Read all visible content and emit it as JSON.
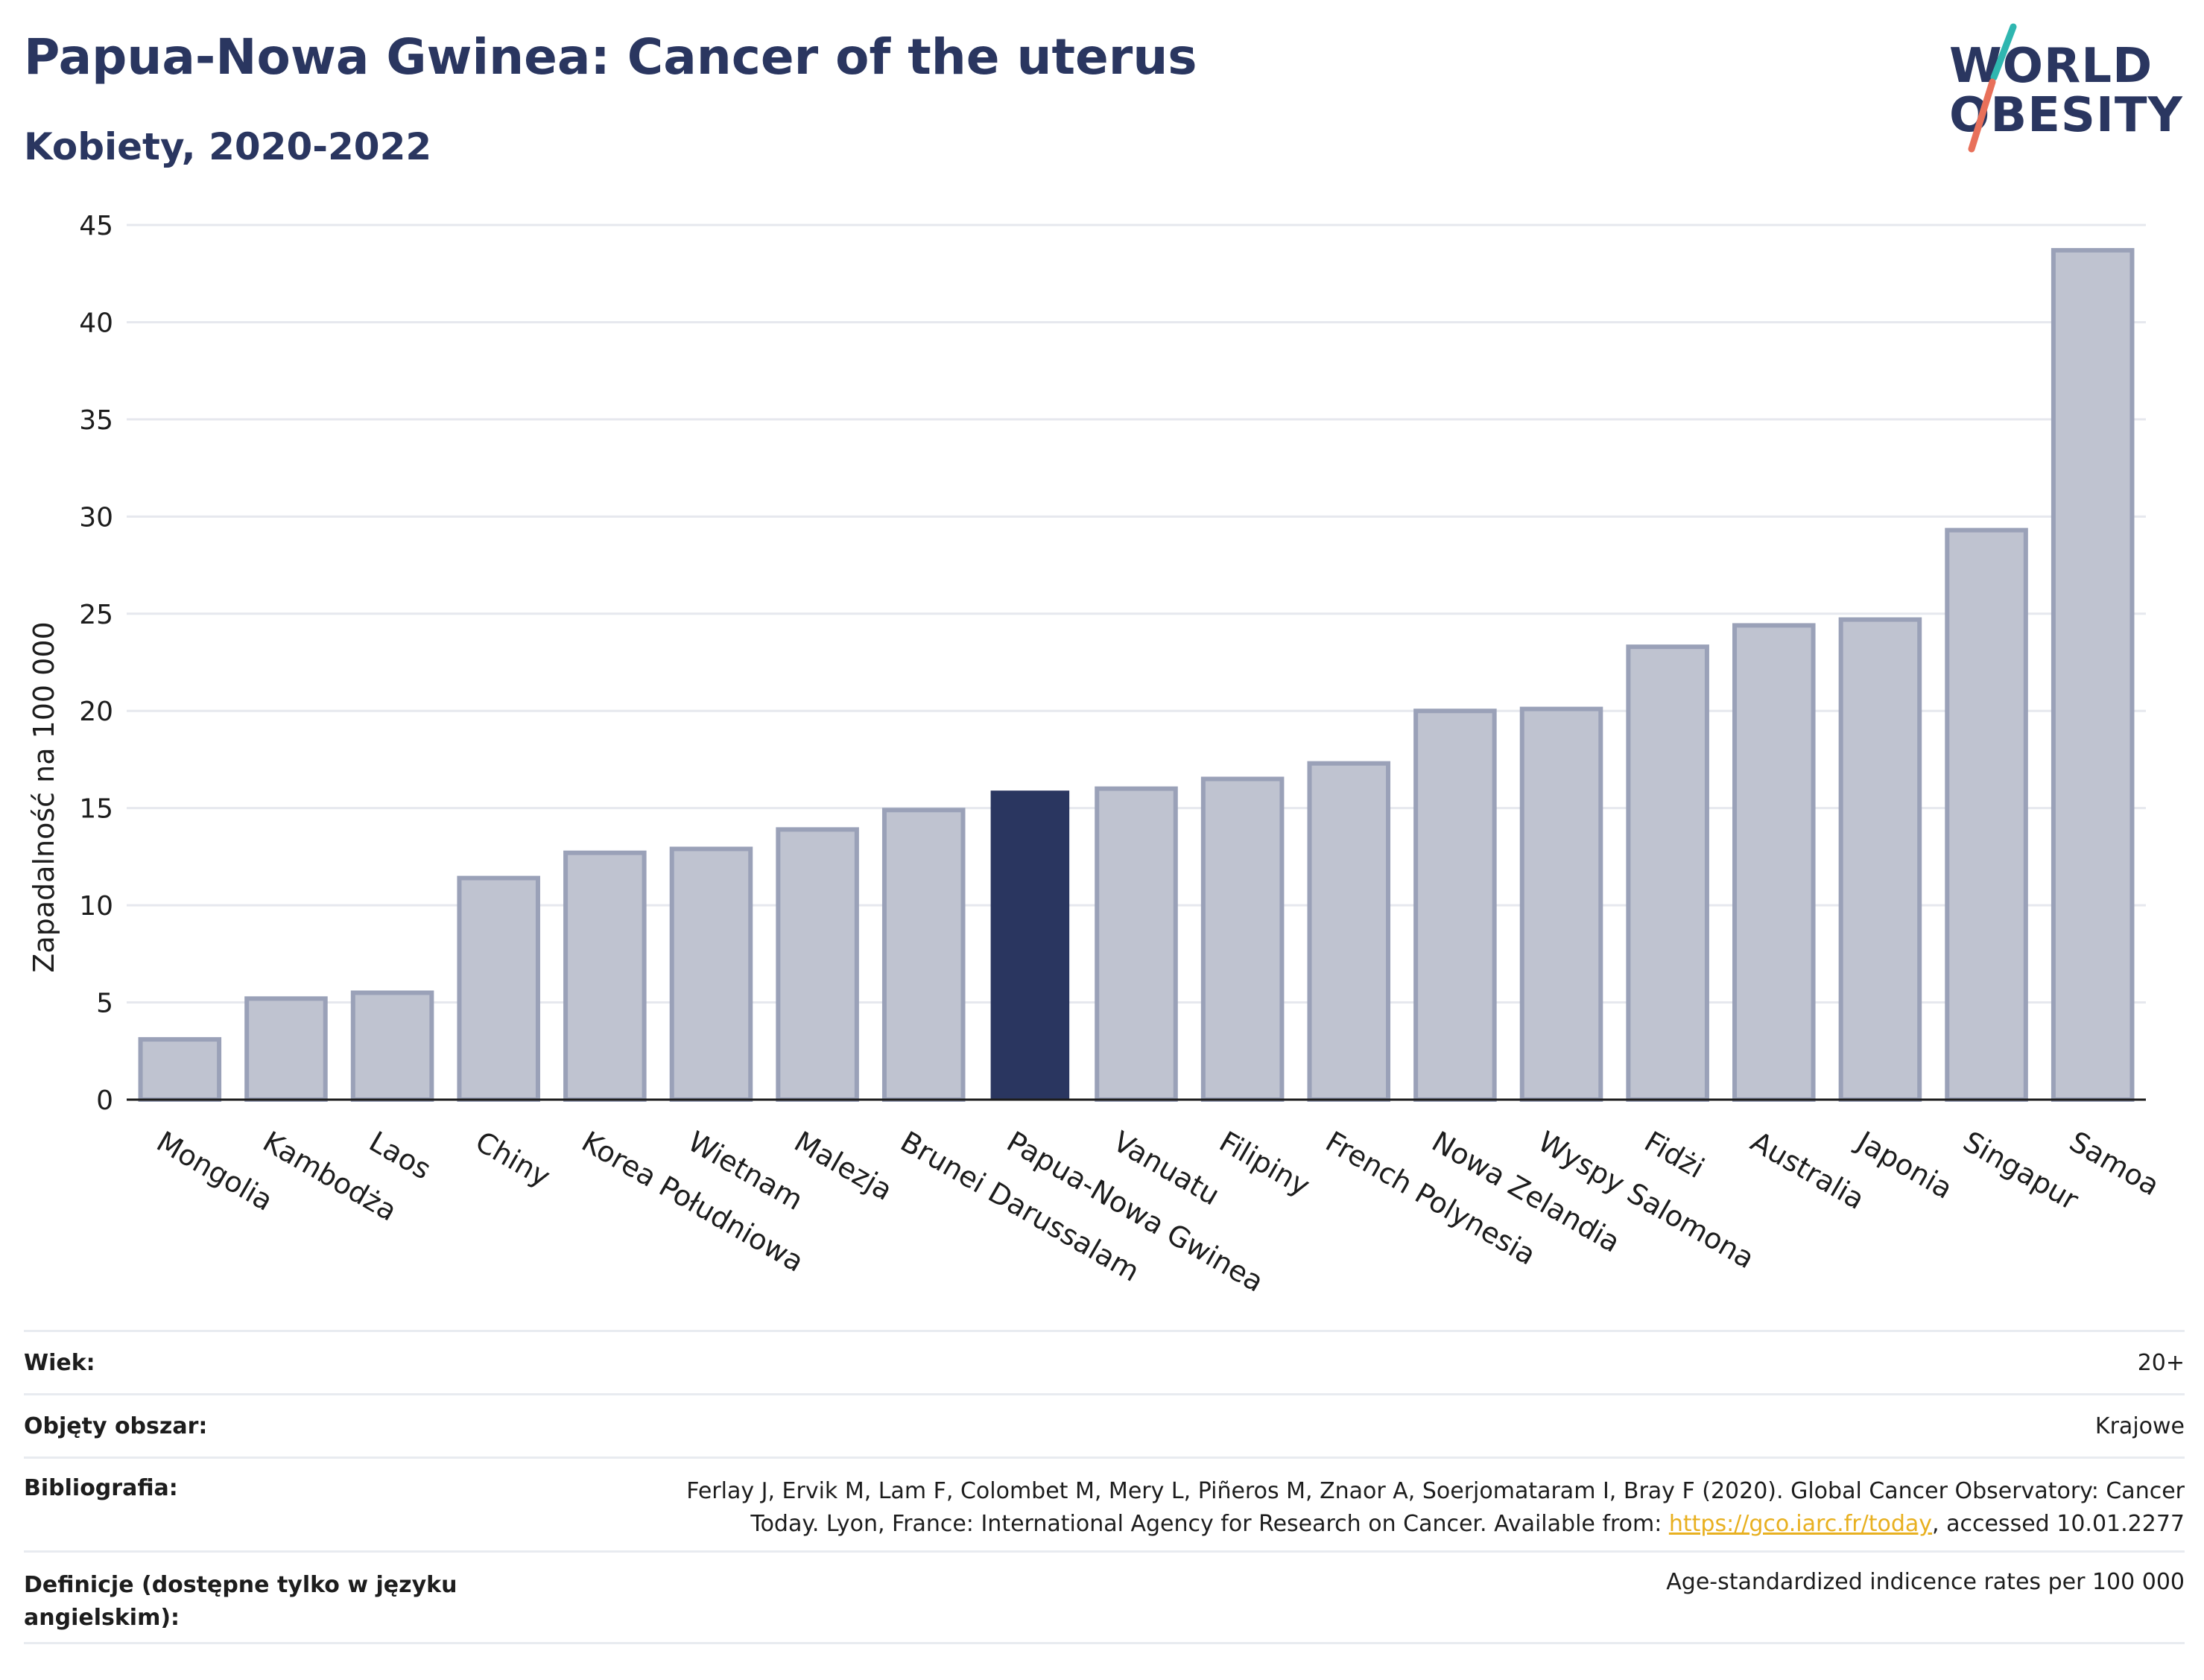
{
  "header": {
    "title": "Papua-Nowa Gwinea: Cancer of the uterus",
    "subtitle": "Kobiety, 2020-2022"
  },
  "logo": {
    "line1": "WORLD",
    "line2": "OBESITY"
  },
  "colors": {
    "bar": "#bfc3d0",
    "bar_border": "#9aa1b8",
    "highlight": "#2a3660",
    "grid": "#e6e8ee"
  },
  "chart_data": {
    "type": "bar",
    "title": "Papua-Nowa Gwinea: Cancer of the uterus",
    "subtitle": "Kobiety, 2020-2022",
    "xlabel": "",
    "ylabel": "Zapadalność na 100 000",
    "ylim": [
      0,
      45
    ],
    "yticks": [
      0,
      5,
      10,
      15,
      20,
      25,
      30,
      35,
      40,
      45
    ],
    "grid": true,
    "categories": [
      "Mongolia",
      "Kambodża",
      "Laos",
      "Chiny",
      "Korea Południowa",
      "Wietnam",
      "Malezja",
      "Brunei Darussalam",
      "Papua-Nowa Gwinea",
      "Vanuatu",
      "Filipiny",
      "French Polynesia",
      "Nowa Zelandia",
      "Wyspy Salomona",
      "Fidżi",
      "Australia",
      "Japonia",
      "Singapur",
      "Samoa"
    ],
    "values": [
      3.1,
      5.2,
      5.5,
      11.4,
      12.7,
      12.9,
      13.9,
      14.9,
      15.9,
      16.0,
      16.5,
      17.3,
      20.0,
      20.1,
      23.3,
      24.4,
      24.7,
      29.3,
      43.7
    ],
    "highlight": "Papua-Nowa Gwinea"
  },
  "info": {
    "rows": [
      {
        "label": "Wiek:",
        "value": "20+"
      },
      {
        "label": "Objęty obszar:",
        "value": "Krajowe"
      },
      {
        "label": "Bibliografia:",
        "value_line1": "Ferlay J, Ervik M, Lam F, Colombet M, Mery L, Piñeros M, Znaor A, Soerjomataram I, Bray F (2020). Global Cancer Observatory: Cancer",
        "value_line2_pre": "Today. Lyon, France: International Agency for Research on Cancer. Available from: ",
        "link": "https://gco.iarc.fr/today",
        "value_line2_post": ", accessed 10.01.2277"
      },
      {
        "label": "Definicje (dostępne tylko w języku angielskim):",
        "value": "Age-standardized indicence rates per 100 000"
      }
    ]
  }
}
